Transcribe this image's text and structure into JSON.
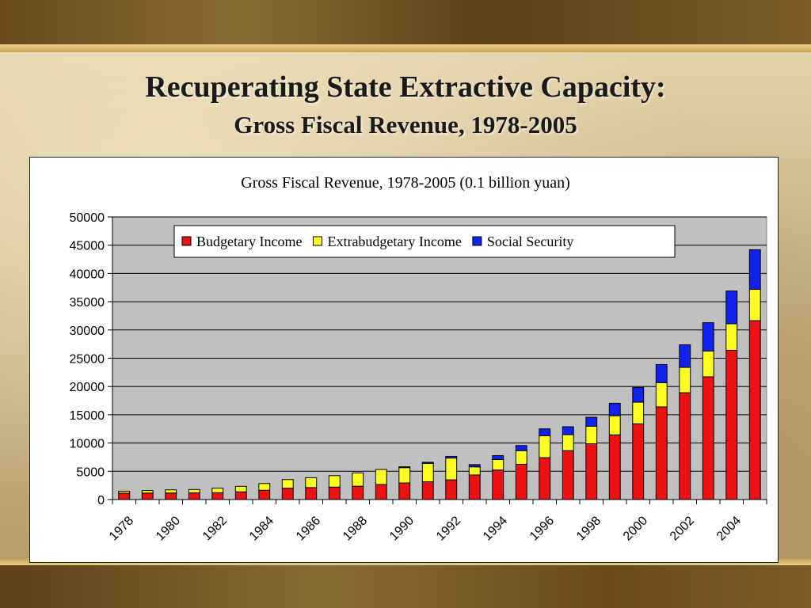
{
  "slide": {
    "title": "Recuperating State Extractive Capacity:",
    "subtitle": "Gross Fiscal Revenue, 1978-2005"
  },
  "colors": {
    "budgetary": "#ee1111",
    "extrabudgetary": "#ffff22",
    "social_security": "#1122ee",
    "plot_bg": "#c0c0c0"
  },
  "chart_data": {
    "type": "bar",
    "stacked": true,
    "title": "Gross Fiscal Revenue, 1978-2005 (0.1 billion yuan)",
    "xlabel": "",
    "ylabel": "",
    "ylim": [
      0,
      50000
    ],
    "yticks": [
      0,
      5000,
      10000,
      15000,
      20000,
      25000,
      30000,
      35000,
      40000,
      45000,
      50000
    ],
    "x_tick_labels": [
      "1978",
      "1980",
      "1982",
      "1984",
      "1986",
      "1988",
      "1990",
      "1992",
      "1994",
      "1996",
      "1998",
      "2000",
      "2002",
      "2004"
    ],
    "categories": [
      "1978",
      "1979",
      "1980",
      "1981",
      "1982",
      "1983",
      "1984",
      "1985",
      "1986",
      "1987",
      "1988",
      "1989",
      "1990",
      "1991",
      "1992",
      "1993",
      "1994",
      "1995",
      "1996",
      "1997",
      "1998",
      "1999",
      "2000",
      "2001",
      "2002",
      "2003",
      "2004",
      "2005"
    ],
    "grid": true,
    "legend_position": "top",
    "series": [
      {
        "name": "Budgetary Income",
        "color_key": "budgetary",
        "values": [
          1132,
          1146,
          1160,
          1176,
          1212,
          1367,
          1643,
          2005,
          2122,
          2199,
          2357,
          2665,
          2937,
          3149,
          3483,
          4349,
          5218,
          6242,
          7408,
          8651,
          9876,
          11444,
          13395,
          16386,
          18904,
          21715,
          26396,
          31649
        ]
      },
      {
        "name": "Extrabudgetary Income",
        "color_key": "extrabudgetary",
        "values": [
          347,
          453,
          558,
          601,
          802,
          968,
          1189,
          1530,
          1737,
          2029,
          2360,
          2659,
          2709,
          3243,
          3855,
          1433,
          1863,
          2407,
          3893,
          2826,
          3083,
          3385,
          3826,
          4300,
          4479,
          4567,
          4699,
          5544
        ]
      },
      {
        "name": "Social Security",
        "color_key": "social_security",
        "values": [
          0,
          0,
          0,
          0,
          0,
          0,
          0,
          0,
          0,
          0,
          0,
          0,
          150,
          200,
          300,
          400,
          700,
          900,
          1200,
          1400,
          1600,
          2200,
          2600,
          3200,
          4000,
          5000,
          5800,
          7000
        ]
      }
    ]
  }
}
